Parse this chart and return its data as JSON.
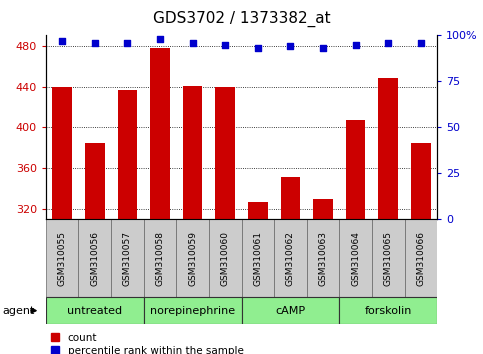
{
  "title": "GDS3702 / 1373382_at",
  "categories": [
    "GSM310055",
    "GSM310056",
    "GSM310057",
    "GSM310058",
    "GSM310059",
    "GSM310060",
    "GSM310061",
    "GSM310062",
    "GSM310063",
    "GSM310064",
    "GSM310065",
    "GSM310066"
  ],
  "bar_values": [
    440,
    385,
    437,
    478,
    441,
    440,
    327,
    352,
    330,
    407,
    448,
    385
  ],
  "percentile_values": [
    97,
    96,
    96,
    98,
    96,
    95,
    93,
    94,
    93,
    95,
    96,
    96
  ],
  "bar_color": "#cc0000",
  "percentile_color": "#0000cc",
  "ylim_left": [
    310,
    490
  ],
  "ylim_right": [
    0,
    100
  ],
  "yticks_left": [
    320,
    360,
    400,
    440,
    480
  ],
  "yticks_right": [
    0,
    25,
    50,
    75,
    100
  ],
  "ytick_labels_right": [
    "0",
    "25",
    "50",
    "75",
    "100%"
  ],
  "groups": [
    {
      "label": "untreated",
      "start": 0,
      "end": 3
    },
    {
      "label": "norepinephrine",
      "start": 3,
      "end": 6
    },
    {
      "label": "cAMP",
      "start": 6,
      "end": 9
    },
    {
      "label": "forskolin",
      "start": 9,
      "end": 12
    }
  ],
  "group_bg_color": "#90ee90",
  "title_fontsize": 11,
  "axis_label_color_left": "#cc0000",
  "axis_label_color_right": "#0000cc",
  "tick_label_area_color": "#cccccc",
  "agent_label": "agent",
  "legend_count_label": "count",
  "legend_percentile_label": "percentile rank within the sample",
  "bar_width": 0.6
}
